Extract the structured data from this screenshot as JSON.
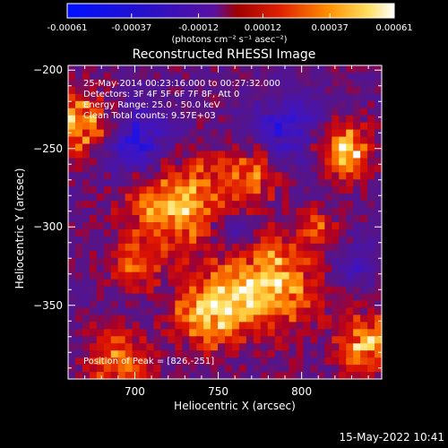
{
  "colorbar": {
    "ticks": [
      "-0.00061",
      "-0.00037",
      "-0.00012",
      "0.00012",
      "0.00037",
      "0.00061"
    ],
    "tick_values": [
      -0.00061,
      -0.00037,
      -0.00012,
      0.00012,
      0.00037,
      0.00061
    ],
    "range": [
      -0.00061,
      0.00061
    ],
    "unit_label": "(photons cm⁻² s⁻¹ asec⁻²)"
  },
  "chart_data": {
    "type": "heatmap",
    "title": "Reconstructed RHESSI Image",
    "xlabel": "Heliocentric X (arcsec)",
    "ylabel": "Heliocentric Y (arcsec)",
    "xlim": [
      660,
      848
    ],
    "ylim": [
      -397,
      -197
    ],
    "x_ticks": [
      700,
      750,
      800
    ],
    "x_tick_labels": [
      "700",
      "750",
      "800"
    ],
    "y_ticks": [
      -200,
      -250,
      -300,
      -350
    ],
    "y_tick_labels": [
      "-200",
      "-250",
      "-300",
      "-350"
    ],
    "annotations": [
      "25-May-2014 00:23:16.000 to 00:27:32.000",
      "Detectors: 3F 4F 5F 6F 7F 8F, Att 0",
      "Energy Range: 25.0 - 50.0 keV",
      "Clean    Total counts: 9.57E+03"
    ],
    "peak_label": "Position of Peak = [826,-251]",
    "peak": [
      826,
      -251
    ],
    "hot_regions": [
      {
        "x": 826,
        "y": -251,
        "r": 16,
        "v": 1.0
      },
      {
        "x": 668,
        "y": -235,
        "r": 20,
        "v": 0.85
      },
      {
        "x": 725,
        "y": -285,
        "r": 30,
        "v": 0.8
      },
      {
        "x": 770,
        "y": -265,
        "r": 18,
        "v": 0.6
      },
      {
        "x": 780,
        "y": -335,
        "r": 30,
        "v": 0.85
      },
      {
        "x": 745,
        "y": -355,
        "r": 22,
        "v": 0.75
      },
      {
        "x": 690,
        "y": -385,
        "r": 20,
        "v": 0.6
      },
      {
        "x": 840,
        "y": -375,
        "r": 18,
        "v": 0.8
      },
      {
        "x": 810,
        "y": -300,
        "r": 12,
        "v": 0.4
      },
      {
        "x": 700,
        "y": -325,
        "r": 15,
        "v": 0.5
      }
    ],
    "cold_regions": [
      {
        "x": 700,
        "y": -245,
        "r": 22,
        "v": -0.7
      },
      {
        "x": 790,
        "y": -240,
        "r": 22,
        "v": -0.55
      },
      {
        "x": 760,
        "y": -305,
        "r": 15,
        "v": -0.45
      },
      {
        "x": 830,
        "y": -325,
        "r": 14,
        "v": -0.4
      }
    ]
  },
  "timestamp": "15-May-2022 10:41"
}
